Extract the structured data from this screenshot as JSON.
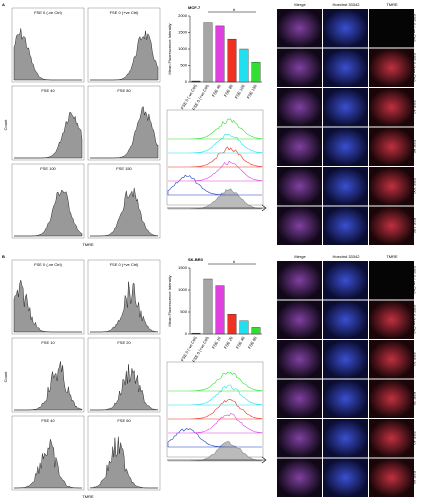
{
  "panels": [
    {
      "label": "A",
      "count_label": "Count",
      "x_label": "TMRE",
      "histograms": [
        "FSE 0 (-ve Ctrl)",
        "FSE 0 (+ve Ctrl)",
        "FSE 40",
        "FSE 80",
        "FSE 100",
        "FSE 150"
      ],
      "columns": [
        "Merge",
        "Hoechst 33342",
        "TMRE"
      ],
      "rows": [
        "FSE 0 (-ve Ctrl)",
        "FSE 0 (+ve Ctrl)",
        "FSE 40",
        "FSE 80",
        "FSE 100",
        "FSE 150"
      ]
    },
    {
      "label": "B",
      "count_label": "Count",
      "x_label": "TMRE",
      "histograms": [
        "FSE 0 (-ve Ctrl)",
        "FSE 0 (+ve Ctrl)",
        "FSE 10",
        "FSE 20",
        "FSE 40",
        "FSE 60"
      ],
      "columns": [
        "Merge",
        "Hoechst 33342",
        "TMRE"
      ],
      "rows": [
        "FSE 0 (-ve Ctrl)",
        "FSE 0 (+ve Ctrl)",
        "FSE 10",
        "FSE 20",
        "FSE 40",
        "FSE 60"
      ]
    }
  ],
  "chart_data": [
    {
      "type": "bar",
      "title": "MCF-7",
      "y_label": "Mean Fluorescence Intensity",
      "annotation": "#",
      "categories": [
        "FSE 0 (-ve Ctrl)",
        "FSE 0 (+ve Ctrl)",
        "FSE 40",
        "FSE 80",
        "FSE 100",
        "FSE 150"
      ],
      "values": [
        30,
        1800,
        1700,
        1300,
        1000,
        600
      ],
      "colors": [
        "#1f3fbf",
        "#a6a6a6",
        "#e040e0",
        "#f03020",
        "#20e0f0",
        "#30e030"
      ],
      "ylim": [
        0,
        2000
      ],
      "yticks": [
        0,
        500,
        1000,
        1500,
        2000
      ]
    },
    {
      "type": "bar",
      "title": "SK-BR3",
      "y_label": "Mean Fluorescence Intensity",
      "annotation": "#",
      "categories": [
        "FSE 0 (-ve Ctrl)",
        "FSE 0 (+ve Ctrl)",
        "FSE 10",
        "FSE 20",
        "FSE 40",
        "FSE 60"
      ],
      "values": [
        20,
        1250,
        1100,
        450,
        300,
        150
      ],
      "colors": [
        "#1f3fbf",
        "#a6a6a6",
        "#e040e0",
        "#f03020",
        "#20e0f0",
        "#30e030"
      ],
      "ylim": [
        0,
        1500
      ],
      "yticks": [
        0,
        500,
        1000,
        1500
      ]
    }
  ]
}
